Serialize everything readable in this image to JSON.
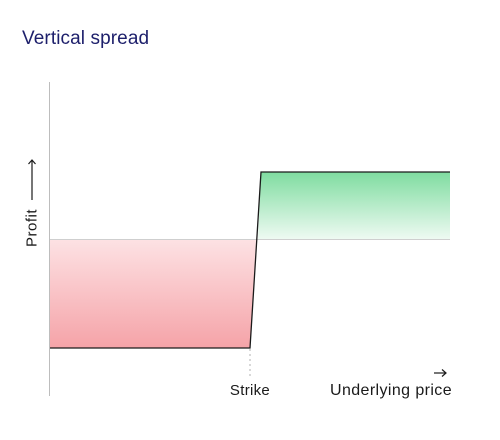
{
  "title": "Vertical spread",
  "axes": {
    "y_label": "Profit",
    "x_label": "Underlying price"
  },
  "markers": {
    "strike_label": "Strike"
  },
  "colors": {
    "title": "#1d1f6b",
    "loss_fill": "#f5a3a8",
    "profit_fill": "#7fdca0",
    "payoff_line": "#1a1a1a",
    "axis": "#bdbdbd"
  }
}
